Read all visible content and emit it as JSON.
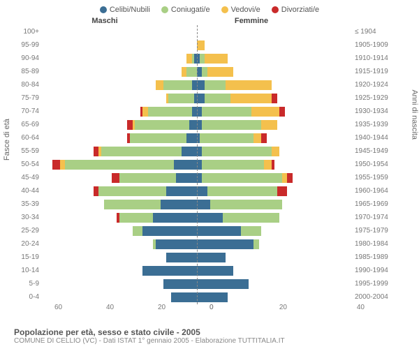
{
  "legend": [
    {
      "label": "Celibi/Nubili",
      "color": "#3b6e94"
    },
    {
      "label": "Coniugati/e",
      "color": "#a9cf85"
    },
    {
      "label": "Vedovi/e",
      "color": "#f4c04d"
    },
    {
      "label": "Divorziati/e",
      "color": "#c92a2a"
    }
  ],
  "header_male": "Maschi",
  "header_female": "Femmine",
  "axis_left": "Fasce di età",
  "axis_right": "Anni di nascita",
  "x_ticks_left": [
    "60",
    "40",
    "20",
    "0"
  ],
  "x_ticks_right": [
    "0",
    "20",
    "40"
  ],
  "x_max": 60,
  "title": "Popolazione per età, sesso e stato civile - 2005",
  "subtitle": "COMUNE DI CELLIO (VC) - Dati ISTAT 1° gennaio 2005 - Elaborazione TUTTITALIA.IT",
  "rows": [
    {
      "age": "100+",
      "birth": "≤ 1904",
      "m": {
        "c": 0,
        "co": 0,
        "v": 0,
        "d": 0
      },
      "f": {
        "c": 0,
        "co": 0,
        "v": 0,
        "d": 0
      }
    },
    {
      "age": "95-99",
      "birth": "1905-1909",
      "m": {
        "c": 0,
        "co": 0,
        "v": 0,
        "d": 0
      },
      "f": {
        "c": 0,
        "co": 0,
        "v": 3,
        "d": 0
      }
    },
    {
      "age": "90-94",
      "birth": "1910-1914",
      "m": {
        "c": 1,
        "co": 1,
        "v": 2,
        "d": 0
      },
      "f": {
        "c": 1,
        "co": 2,
        "v": 9,
        "d": 0
      }
    },
    {
      "age": "85-89",
      "birth": "1915-1919",
      "m": {
        "c": 0,
        "co": 4,
        "v": 2,
        "d": 0
      },
      "f": {
        "c": 2,
        "co": 2,
        "v": 10,
        "d": 0
      }
    },
    {
      "age": "80-84",
      "birth": "1920-1924",
      "m": {
        "c": 2,
        "co": 11,
        "v": 3,
        "d": 0
      },
      "f": {
        "c": 3,
        "co": 8,
        "v": 18,
        "d": 0
      }
    },
    {
      "age": "75-79",
      "birth": "1925-1929",
      "m": {
        "c": 1,
        "co": 10,
        "v": 1,
        "d": 0
      },
      "f": {
        "c": 3,
        "co": 10,
        "v": 16,
        "d": 2
      }
    },
    {
      "age": "70-74",
      "birth": "1930-1934",
      "m": {
        "c": 2,
        "co": 17,
        "v": 2,
        "d": 1
      },
      "f": {
        "c": 2,
        "co": 19,
        "v": 11,
        "d": 2
      }
    },
    {
      "age": "65-69",
      "birth": "1935-1939",
      "m": {
        "c": 3,
        "co": 21,
        "v": 1,
        "d": 2
      },
      "f": {
        "c": 2,
        "co": 23,
        "v": 6,
        "d": 0
      }
    },
    {
      "age": "60-64",
      "birth": "1940-1944",
      "m": {
        "c": 4,
        "co": 22,
        "v": 0,
        "d": 1
      },
      "f": {
        "c": 1,
        "co": 21,
        "v": 3,
        "d": 2
      }
    },
    {
      "age": "55-59",
      "birth": "1945-1949",
      "m": {
        "c": 6,
        "co": 31,
        "v": 1,
        "d": 2
      },
      "f": {
        "c": 2,
        "co": 27,
        "v": 3,
        "d": 0
      }
    },
    {
      "age": "50-54",
      "birth": "1950-1954",
      "m": {
        "c": 9,
        "co": 42,
        "v": 2,
        "d": 3
      },
      "f": {
        "c": 2,
        "co": 24,
        "v": 3,
        "d": 1
      }
    },
    {
      "age": "45-49",
      "birth": "1955-1959",
      "m": {
        "c": 8,
        "co": 22,
        "v": 0,
        "d": 3
      },
      "f": {
        "c": 2,
        "co": 31,
        "v": 2,
        "d": 2
      }
    },
    {
      "age": "40-44",
      "birth": "1960-1964",
      "m": {
        "c": 12,
        "co": 26,
        "v": 0,
        "d": 2
      },
      "f": {
        "c": 4,
        "co": 27,
        "v": 0,
        "d": 4
      }
    },
    {
      "age": "35-39",
      "birth": "1965-1969",
      "m": {
        "c": 14,
        "co": 22,
        "v": 0,
        "d": 0
      },
      "f": {
        "c": 5,
        "co": 28,
        "v": 0,
        "d": 0
      }
    },
    {
      "age": "30-34",
      "birth": "1970-1974",
      "m": {
        "c": 17,
        "co": 13,
        "v": 0,
        "d": 1
      },
      "f": {
        "c": 10,
        "co": 22,
        "v": 0,
        "d": 0
      }
    },
    {
      "age": "25-29",
      "birth": "1975-1979",
      "m": {
        "c": 21,
        "co": 4,
        "v": 0,
        "d": 0
      },
      "f": {
        "c": 17,
        "co": 8,
        "v": 0,
        "d": 0
      }
    },
    {
      "age": "20-24",
      "birth": "1980-1984",
      "m": {
        "c": 16,
        "co": 1,
        "v": 0,
        "d": 0
      },
      "f": {
        "c": 22,
        "co": 2,
        "v": 0,
        "d": 0
      }
    },
    {
      "age": "15-19",
      "birth": "1985-1989",
      "m": {
        "c": 12,
        "co": 0,
        "v": 0,
        "d": 0
      },
      "f": {
        "c": 11,
        "co": 0,
        "v": 0,
        "d": 0
      }
    },
    {
      "age": "10-14",
      "birth": "1990-1994",
      "m": {
        "c": 21,
        "co": 0,
        "v": 0,
        "d": 0
      },
      "f": {
        "c": 14,
        "co": 0,
        "v": 0,
        "d": 0
      }
    },
    {
      "age": "5-9",
      "birth": "1995-1999",
      "m": {
        "c": 13,
        "co": 0,
        "v": 0,
        "d": 0
      },
      "f": {
        "c": 20,
        "co": 0,
        "v": 0,
        "d": 0
      }
    },
    {
      "age": "0-4",
      "birth": "2000-2004",
      "m": {
        "c": 10,
        "co": 0,
        "v": 0,
        "d": 0
      },
      "f": {
        "c": 12,
        "co": 0,
        "v": 0,
        "d": 0
      }
    }
  ],
  "colors": {
    "c": "#3b6e94",
    "co": "#a9cf85",
    "v": "#f4c04d",
    "d": "#c92a2a"
  }
}
